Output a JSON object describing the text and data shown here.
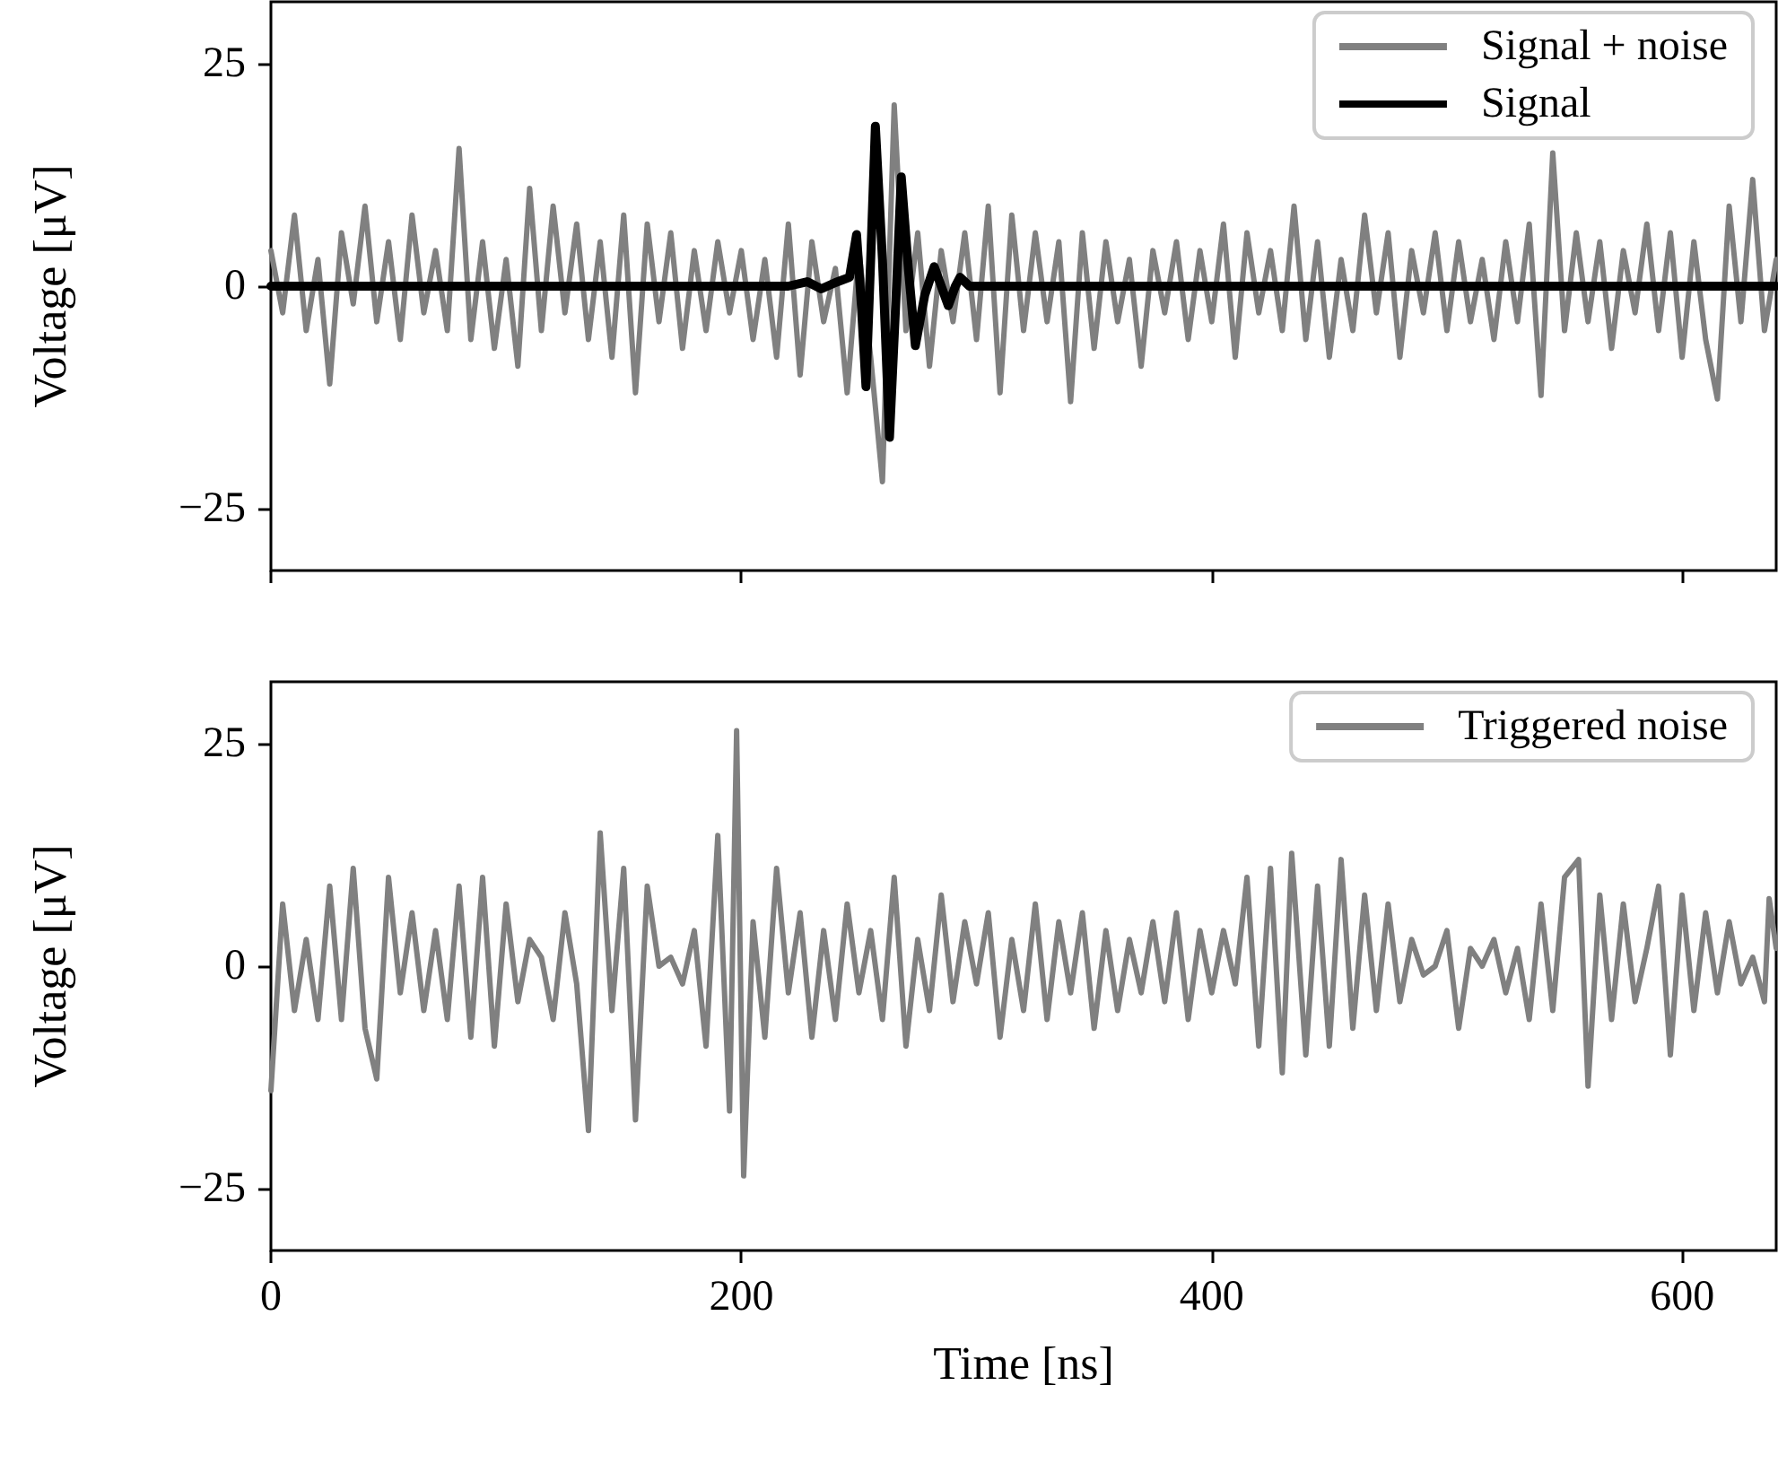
{
  "chart_data": [
    {
      "type": "line",
      "ylabel": "Voltage [μV]",
      "xlim": [
        0,
        640
      ],
      "ylim": [
        -32,
        32
      ],
      "xticks": [
        0,
        200,
        400,
        600
      ],
      "yticks": [
        -25,
        0,
        25
      ],
      "tick_labels": "y",
      "grid": false,
      "legend": "top right",
      "marker": "none",
      "line_style": "solid",
      "series": [
        {
          "name": "Signal + noise",
          "color": "#808080",
          "x": [
            0,
            5,
            10,
            15,
            20,
            25,
            30,
            35,
            40,
            45,
            50,
            55,
            60,
            65,
            70,
            75,
            80,
            85,
            90,
            95,
            100,
            105,
            110,
            115,
            120,
            125,
            130,
            135,
            140,
            145,
            150,
            155,
            160,
            165,
            170,
            175,
            180,
            185,
            190,
            195,
            200,
            205,
            210,
            215,
            220,
            225,
            230,
            235,
            240,
            245,
            250,
            255,
            260,
            265,
            270,
            275,
            280,
            285,
            290,
            295,
            300,
            305,
            310,
            315,
            320,
            325,
            330,
            335,
            340,
            345,
            350,
            355,
            360,
            365,
            370,
            375,
            380,
            385,
            390,
            395,
            400,
            405,
            410,
            415,
            420,
            425,
            430,
            435,
            440,
            445,
            450,
            455,
            460,
            465,
            470,
            475,
            480,
            485,
            490,
            495,
            500,
            505,
            510,
            515,
            520,
            525,
            530,
            535,
            540,
            545,
            550,
            555,
            560,
            565,
            570,
            575,
            580,
            585,
            590,
            595,
            600,
            605,
            610,
            615,
            620,
            625,
            630,
            635,
            640
          ],
          "values": [
            4,
            -3,
            8,
            -5,
            3,
            -11,
            6,
            -2,
            9,
            -4,
            5,
            -6,
            8,
            -3,
            4,
            -5,
            15.5,
            -6,
            5,
            -7,
            3,
            -9,
            11,
            -5,
            9,
            -3,
            7,
            -6,
            5,
            -8,
            8,
            -12,
            7,
            -4,
            6,
            -7,
            4,
            -5,
            5,
            -3,
            4,
            -6,
            3,
            -8,
            7,
            -10,
            5,
            -4,
            2,
            -12,
            4,
            -8,
            -22,
            20.4,
            -5,
            6,
            -9,
            4,
            -4,
            6,
            -6,
            9,
            -12,
            8,
            -5,
            6,
            -4,
            5,
            -13,
            6,
            -7,
            5,
            -4,
            3,
            -9,
            4,
            -3,
            5,
            -6,
            4,
            -4,
            7,
            -8,
            6,
            -3,
            4,
            -5,
            9,
            -6,
            5,
            -8,
            3,
            -5,
            8,
            -3,
            6,
            -8,
            4,
            -3,
            6,
            -5,
            5,
            -4,
            3,
            -6,
            5,
            -4,
            7,
            -12.3,
            15,
            -5,
            6,
            -4,
            5,
            -7,
            4,
            -3,
            7,
            -5,
            6,
            -8,
            5,
            -6,
            -12.7,
            9,
            -4,
            12,
            -5,
            3
          ]
        },
        {
          "name": "Signal",
          "color": "#000000",
          "x": [
            0,
            220,
            228,
            234,
            240,
            246,
            249,
            251,
            253,
            255,
            257,
            260,
            263,
            266,
            268,
            271,
            274,
            278,
            282,
            285,
            288,
            291,
            293,
            297,
            300,
            640
          ],
          "values": [
            0,
            0,
            0.5,
            -0.3,
            0.4,
            1,
            5.8,
            -2,
            -11.3,
            3,
            18,
            3,
            -17,
            0,
            12.3,
            2,
            -6.7,
            -1,
            2.2,
            0,
            -2.2,
            0,
            1,
            0,
            0,
            0
          ]
        }
      ]
    },
    {
      "type": "line",
      "xlabel": "Time [ns]",
      "ylabel": "Voltage [μV]",
      "xlim": [
        0,
        640
      ],
      "ylim": [
        -32,
        32
      ],
      "xticks": [
        0,
        200,
        400,
        600
      ],
      "yticks": [
        -25,
        0,
        25
      ],
      "grid": false,
      "legend": "top right",
      "marker": "none",
      "line_style": "solid",
      "series": [
        {
          "name": "Triggered noise",
          "color": "#808080",
          "x": [
            0,
            5,
            10,
            15,
            20,
            25,
            30,
            35,
            40,
            45,
            50,
            55,
            60,
            65,
            70,
            75,
            80,
            85,
            90,
            95,
            100,
            105,
            110,
            115,
            120,
            125,
            130,
            135,
            140,
            145,
            150,
            155,
            160,
            165,
            170,
            175,
            180,
            185,
            190,
            195,
            198,
            201,
            205,
            210,
            215,
            220,
            225,
            230,
            235,
            240,
            245,
            250,
            255,
            260,
            265,
            270,
            275,
            280,
            285,
            290,
            295,
            300,
            305,
            310,
            315,
            320,
            325,
            330,
            335,
            340,
            345,
            350,
            355,
            360,
            365,
            370,
            375,
            380,
            385,
            390,
            395,
            400,
            405,
            410,
            415,
            420,
            425,
            430,
            434,
            440,
            445,
            450,
            455,
            460,
            465,
            470,
            475,
            480,
            485,
            490,
            495,
            500,
            505,
            510,
            515,
            520,
            525,
            530,
            535,
            540,
            545,
            550,
            556,
            560,
            565,
            570,
            575,
            580,
            585,
            590,
            595,
            600,
            605,
            610,
            615,
            620,
            625,
            630,
            635,
            637,
            640
          ],
          "values": [
            -14,
            7,
            -5,
            3,
            -6,
            9,
            -6,
            11,
            -7,
            -12.7,
            10,
            -3,
            6,
            -5,
            4,
            -6,
            9,
            -8,
            10,
            -9,
            7,
            -4,
            3,
            1,
            -6,
            6,
            -2,
            -18.5,
            15,
            -5,
            11,
            -17.3,
            9,
            0,
            1,
            -2,
            4,
            -9,
            14.7,
            -16.3,
            26.5,
            -23.6,
            5,
            -8,
            11,
            -3,
            6,
            -8,
            4,
            -6,
            7,
            -3,
            4,
            -6,
            10,
            -9,
            3,
            -5,
            8,
            -4,
            5,
            -2,
            6,
            -8,
            3,
            -5,
            7,
            -6,
            5,
            -3,
            6,
            -7,
            4,
            -5,
            3,
            -3,
            5,
            -4,
            6,
            -6,
            4,
            -3,
            4,
            -2,
            10,
            -9,
            11,
            -12,
            12.7,
            -10,
            9,
            -9,
            12,
            -7,
            8,
            -5,
            7,
            -4,
            3,
            -1,
            0,
            4,
            -7,
            2,
            0,
            3,
            -3,
            2,
            -6,
            7,
            -5,
            10,
            12,
            -13.5,
            8,
            -6,
            7,
            -4,
            2,
            9,
            -10,
            8,
            -5,
            6,
            -3,
            5,
            -2,
            1,
            -4,
            7.6,
            2
          ]
        }
      ]
    }
  ]
}
